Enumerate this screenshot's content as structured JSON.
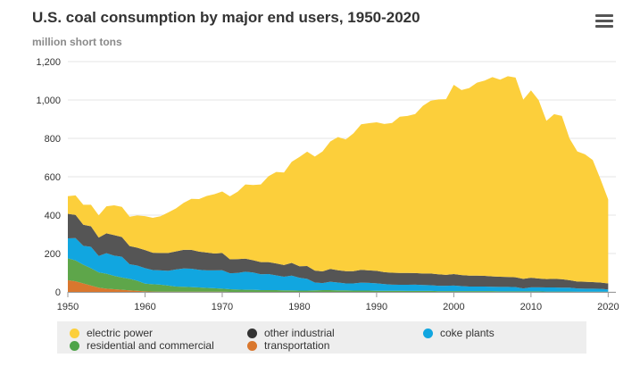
{
  "title": "U.S. coal consumption by major end users, 1950-2020",
  "subtitle": "million short tons",
  "menu_icon": "hamburger-menu-icon",
  "chart_data": {
    "type": "area",
    "stacked": true,
    "x": [
      1950,
      1951,
      1952,
      1953,
      1954,
      1955,
      1956,
      1957,
      1958,
      1959,
      1960,
      1961,
      1962,
      1963,
      1964,
      1965,
      1966,
      1967,
      1968,
      1969,
      1970,
      1971,
      1972,
      1973,
      1974,
      1975,
      1976,
      1977,
      1978,
      1979,
      1980,
      1981,
      1982,
      1983,
      1984,
      1985,
      1986,
      1987,
      1988,
      1989,
      1990,
      1991,
      1992,
      1993,
      1994,
      1995,
      1996,
      1997,
      1998,
      1999,
      2000,
      2001,
      2002,
      2003,
      2004,
      2005,
      2006,
      2007,
      2008,
      2009,
      2010,
      2011,
      2012,
      2013,
      2014,
      2015,
      2016,
      2017,
      2018,
      2019,
      2020
    ],
    "xlim": [
      1950,
      2021
    ],
    "ylim": [
      0,
      1200
    ],
    "x_ticks": [
      "1950",
      "1960",
      "1970",
      "1980",
      "1990",
      "2000",
      "2010",
      "2020"
    ],
    "y_ticks": [
      "0",
      "200",
      "400",
      "600",
      "800",
      "1,000",
      "1,200"
    ],
    "grid": true,
    "legend_position": "bottom",
    "series": [
      {
        "name": "transportation",
        "color": "#d9772e",
        "values": [
          61,
          55,
          44,
          33,
          22,
          17,
          14,
          11,
          8,
          6,
          3,
          2,
          1,
          1,
          1,
          1,
          1,
          1,
          1,
          1,
          1,
          0,
          0,
          0,
          0,
          0,
          0,
          0,
          0,
          0,
          0,
          0,
          0,
          0,
          0,
          0,
          0,
          0,
          0,
          0,
          0,
          0,
          0,
          0,
          0,
          0,
          0,
          0,
          0,
          0,
          0,
          0,
          0,
          0,
          0,
          0,
          0,
          0,
          0,
          0,
          0,
          0,
          0,
          0,
          0,
          0,
          0,
          0,
          0,
          0,
          0
        ]
      },
      {
        "name": "residential and commercial",
        "color": "#5ea64a",
        "values": [
          114,
          109,
          98,
          90,
          80,
          78,
          70,
          64,
          60,
          52,
          40,
          38,
          37,
          32,
          27,
          26,
          24,
          22,
          20,
          18,
          16,
          14,
          12,
          11,
          11,
          9,
          9,
          9,
          8,
          8,
          7,
          7,
          8,
          9,
          9,
          8,
          8,
          7,
          7,
          7,
          6,
          6,
          6,
          6,
          5,
          5,
          5,
          5,
          4,
          4,
          4,
          4,
          4,
          4,
          4,
          4,
          3,
          3,
          3,
          3,
          3,
          3,
          2,
          2,
          2,
          2,
          1,
          1,
          1,
          1,
          1
        ]
      },
      {
        "name": "coke plants",
        "color": "#11a6e0",
        "values": [
          104,
          116,
          98,
          112,
          85,
          107,
          105,
          108,
          76,
          79,
          81,
          74,
          74,
          77,
          89,
          95,
          96,
          92,
          91,
          93,
          96,
          83,
          87,
          94,
          90,
          83,
          84,
          77,
          71,
          77,
          67,
          61,
          41,
          37,
          44,
          41,
          36,
          37,
          41,
          40,
          39,
          35,
          32,
          31,
          32,
          33,
          31,
          30,
          28,
          28,
          29,
          26,
          24,
          24,
          24,
          23,
          23,
          23,
          22,
          15,
          21,
          21,
          21,
          21,
          20,
          20,
          17,
          16,
          16,
          15,
          12
        ]
      },
      {
        "name": "other industrial",
        "color": "#555555",
        "values": [
          128,
          121,
          110,
          107,
          96,
          103,
          107,
          103,
          95,
          93,
          94,
          90,
          91,
          93,
          94,
          97,
          98,
          95,
          93,
          88,
          90,
          73,
          72,
          68,
          64,
          63,
          62,
          62,
          61,
          66,
          60,
          67,
          62,
          61,
          67,
          64,
          64,
          64,
          67,
          65,
          65,
          62,
          62,
          62,
          62,
          60,
          60,
          61,
          60,
          57,
          60,
          58,
          57,
          57,
          56,
          54,
          53,
          52,
          51,
          50,
          50,
          46,
          44,
          45,
          44,
          39,
          36,
          36,
          34,
          33,
          31
        ]
      },
      {
        "name": "electric power",
        "color": "#fccf3b",
        "values": [
          92,
          102,
          104,
          112,
          116,
          141,
          155,
          157,
          153,
          168,
          177,
          182,
          191,
          211,
          224,
          245,
          266,
          274,
          295,
          309,
          320,
          328,
          351,
          387,
          392,
          405,
          448,
          477,
          482,
          527,
          569,
          596,
          594,
          625,
          664,
          694,
          686,
          718,
          758,
          767,
          774,
          772,
          780,
          814,
          818,
          829,
          874,
          900,
          911,
          915,
          986,
          964,
          977,
          1005,
          1017,
          1038,
          1027,
          1046,
          1041,
          934,
          976,
          929,
          824,
          858,
          851,
          738,
          678,
          664,
          636,
          539,
          438
        ]
      }
    ]
  },
  "legend": {
    "items": [
      {
        "label": "electric power",
        "color": "#fccf3b"
      },
      {
        "label": "other industrial",
        "color": "#333333"
      },
      {
        "label": "coke plants",
        "color": "#11a6e0"
      },
      {
        "label": "residential and commercial",
        "color": "#4ea449"
      },
      {
        "label": "transportation",
        "color": "#d9772e"
      }
    ]
  }
}
